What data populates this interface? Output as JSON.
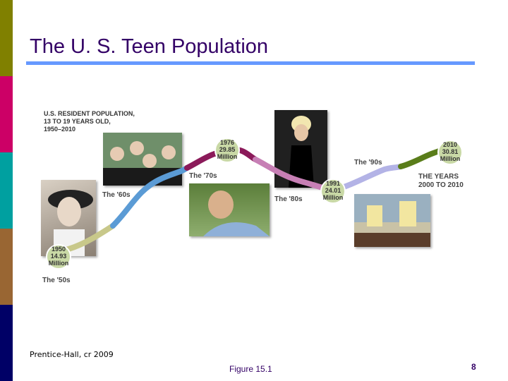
{
  "slide": {
    "title": "The U. S. Teen Population",
    "credit": "Prentice-Hall, cr 2009",
    "figure_label": "Figure 15.1",
    "page_number": "8"
  },
  "colors": {
    "side_bar": [
      "#808000",
      "#cc0066",
      "#00a0a0",
      "#996633",
      "#000066"
    ],
    "title_rule": "#6699ff",
    "title_text": "#330066"
  },
  "chart_data": {
    "type": "line",
    "title_lines": [
      "U.S. RESIDENT POPULATION,",
      "13 TO 19 YEARS OLD,",
      "1950–2010"
    ],
    "points": [
      {
        "year": 1950,
        "value": 14.93,
        "lines": [
          "1950",
          "14.93",
          "Million"
        ]
      },
      {
        "year": 1976,
        "value": 29.85,
        "lines": [
          "1976",
          "29.85",
          "Million"
        ]
      },
      {
        "year": 1991,
        "value": 24.01,
        "lines": [
          "1991",
          "24.01",
          "Million"
        ]
      },
      {
        "year": 2010,
        "value": 30.81,
        "lines": [
          "2010",
          "30.81",
          "Million"
        ]
      }
    ],
    "eras": [
      {
        "label": "The '50s",
        "color": "#c8c88a"
      },
      {
        "label": "The '60s",
        "color": "#5b9bd5"
      },
      {
        "label": "The '70s",
        "color": "#8b1a5a"
      },
      {
        "label": "The '80s",
        "color": "#c77fb5"
      },
      {
        "label": "The '90s",
        "color": "#b3b3e6"
      },
      {
        "label": "THE YEARS 2000 TO 2010",
        "color": "#5a7d1a"
      }
    ],
    "future_lines": [
      "THE YEARS",
      "2000 TO 2010"
    ],
    "xlabel": "",
    "ylabel": ""
  }
}
